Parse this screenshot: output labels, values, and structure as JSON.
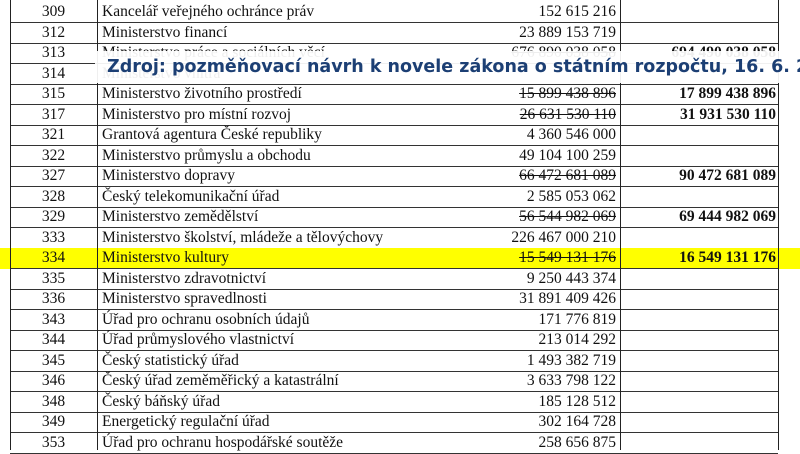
{
  "caption": "Zdroj: pozměňovací návrh k novele zákona o státním rozpočtu, 16. 6. 2020",
  "highlight_color": "#ffff00",
  "caption_color": "#1c3f74",
  "rows": [
    {
      "num": "309",
      "name": "Kancelář veřejného ochránce práv",
      "amount": "152 615 216",
      "struck": false,
      "new": ""
    },
    {
      "num": "312",
      "name": "Ministerstvo financí",
      "amount": "23 889 153 719",
      "struck": false,
      "new": ""
    },
    {
      "num": "313",
      "name": "Ministerstvo práce a sociálních věcí",
      "amount": "676 890 038 058",
      "struck": true,
      "new": "694 490 038 058"
    },
    {
      "num": "314",
      "name": "Ministerstvo vnitra",
      "amount": "",
      "struck": false,
      "new": ""
    },
    {
      "num": "315",
      "name": "Ministerstvo životního prostředí",
      "amount": "15 899 438 896",
      "struck": true,
      "new": "17 899 438 896"
    },
    {
      "num": "317",
      "name": "Ministerstvo pro místní rozvoj",
      "amount": "26 631 530 110",
      "struck": true,
      "new": "31 931 530 110"
    },
    {
      "num": "321",
      "name": "Grantová agentura České republiky",
      "amount": "4 360 546 000",
      "struck": false,
      "new": ""
    },
    {
      "num": "322",
      "name": "Ministerstvo průmyslu a obchodu",
      "amount": "49 104 100 259",
      "struck": false,
      "new": ""
    },
    {
      "num": "327",
      "name": "Ministerstvo dopravy",
      "amount": "66 472 681 089",
      "struck": true,
      "new": "90 472 681 089"
    },
    {
      "num": "328",
      "name": "Český telekomunikační úřad",
      "amount": "2 585 053 062",
      "struck": false,
      "new": ""
    },
    {
      "num": "329",
      "name": "Ministerstvo zemědělství",
      "amount": "56 544 982 069",
      "struck": true,
      "new": "69 444 982 069"
    },
    {
      "num": "333",
      "name": "Ministerstvo školství, mládeže a tělovýchovy",
      "amount": "226 467 000 210",
      "struck": false,
      "new": ""
    },
    {
      "num": "334",
      "name": "Ministerstvo kultury",
      "amount": "15 549 131 176",
      "struck": true,
      "new": "16 549 131 176",
      "highlight": true
    },
    {
      "num": "335",
      "name": "Ministerstvo zdravotnictví",
      "amount": "9 250 443 374",
      "struck": false,
      "new": ""
    },
    {
      "num": "336",
      "name": "Ministerstvo spravedlnosti",
      "amount": "31 891 409 426",
      "struck": false,
      "new": ""
    },
    {
      "num": "343",
      "name": "Úřad pro ochranu osobních údajů",
      "amount": "171 776 819",
      "struck": false,
      "new": ""
    },
    {
      "num": "344",
      "name": "Úřad průmyslového vlastnictví",
      "amount": "213 014 292",
      "struck": false,
      "new": ""
    },
    {
      "num": "345",
      "name": "Český statistický úřad",
      "amount": "1 493 382 719",
      "struck": false,
      "new": ""
    },
    {
      "num": "346",
      "name": "Český úřad zeměměřický a katastrální",
      "amount": "3 633 798 122",
      "struck": false,
      "new": ""
    },
    {
      "num": "348",
      "name": "Český báňský úřad",
      "amount": "185 128 512",
      "struck": false,
      "new": ""
    },
    {
      "num": "349",
      "name": "Energetický regulační úřad",
      "amount": "302 164 728",
      "struck": false,
      "new": ""
    },
    {
      "num": "353",
      "name": "Úřad pro ochranu hospodářské soutěže",
      "amount": "258 656 875",
      "struck": false,
      "new": ""
    }
  ]
}
